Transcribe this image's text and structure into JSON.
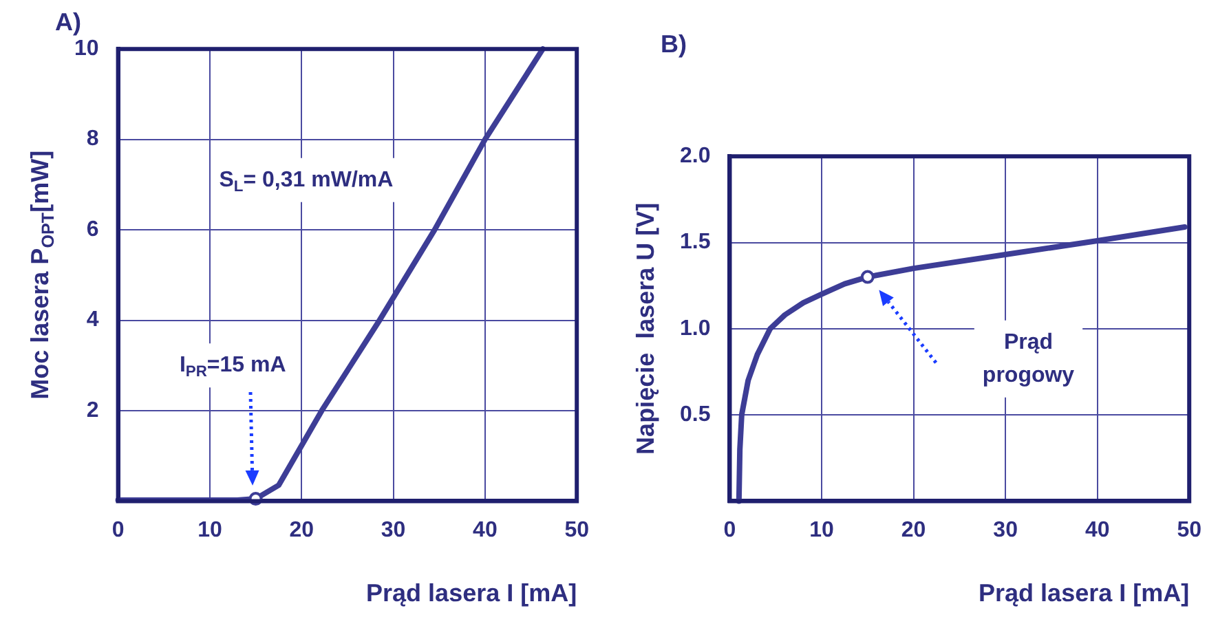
{
  "chart_data": [
    {
      "type": "line",
      "title": "A)",
      "xlabel": "Prąd lasera I [mA]",
      "ylabel": "Moc lasera P$_{OPT}$[mW]",
      "xlim": [
        0,
        50
      ],
      "xticks": [
        0,
        10,
        20,
        30,
        40,
        50
      ],
      "ylim": [
        0,
        10
      ],
      "yticks": [
        {
          "value": 0,
          "label": null
        },
        2,
        4,
        6,
        8,
        10
      ],
      "grid": true,
      "legend": false,
      "marker": "none",
      "line_style": "solid",
      "series": [
        {
          "color": "#3d3d96",
          "x": [
            0,
            13,
            15,
            17.5,
            22.2,
            28.5,
            34.5,
            40,
            46.3
          ],
          "values": [
            0.02,
            0.02,
            0.05,
            0.35,
            2,
            4,
            6,
            8,
            10
          ]
        },
        {
          "type": "scatter",
          "marker": "circle",
          "color": "#3d3d96",
          "x": [
            15
          ],
          "values": [
            0.05
          ]
        }
      ],
      "annotations": [
        "S$_{L}$= 0,31 mW/mA",
        "I$_{PR}$=15 mA"
      ]
    },
    {
      "type": "line",
      "title": "B)",
      "xlabel": "Prąd lasera I [mA]",
      "ylabel": "Napięcie  lasera U [V]",
      "xlim": [
        0,
        50
      ],
      "xticks": [
        0,
        10,
        20,
        30,
        40,
        50
      ],
      "ylim": [
        0,
        2
      ],
      "yticks": [
        {
          "value": 0,
          "label": null
        },
        0.5,
        {
          "value": 1,
          "label": "1.0"
        },
        1.5,
        {
          "value": 2,
          "label": "2.0"
        }
      ],
      "grid": true,
      "legend": false,
      "marker": "none",
      "line_style": "solid",
      "series": [
        {
          "color": "#3d3d96",
          "x": [
            1,
            1.1,
            1.3,
            2,
            3,
            4.4,
            6,
            8,
            10,
            12.5,
            15,
            20,
            30,
            40,
            49.5
          ],
          "values": [
            0,
            0.3,
            0.5,
            0.7,
            0.85,
            1.0,
            1.08,
            1.15,
            1.2,
            1.26,
            1.3,
            1.35,
            1.43,
            1.51,
            1.59
          ]
        },
        {
          "type": "scatter",
          "marker": "circle",
          "color": "#3d3d96",
          "x": [
            15
          ],
          "values": [
            1.3
          ]
        }
      ],
      "annotations": [
        "Prąd progowy"
      ]
    }
  ]
}
